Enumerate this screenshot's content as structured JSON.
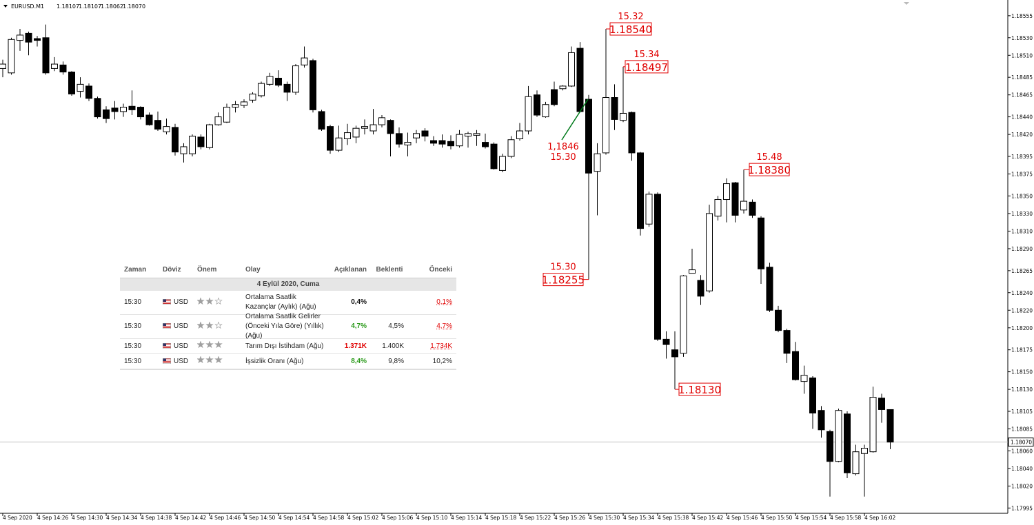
{
  "header": {
    "symbol": "EURUSD.M1",
    "ohlc": [
      "1.18107",
      "1.18107",
      "1.18062",
      "1.18070"
    ]
  },
  "chart_data": {
    "type": "candlestick",
    "categories": [
      "4 Sep 2020",
      null,
      null,
      null,
      "4 Sep 14:26",
      null,
      null,
      null,
      "4 Sep 14:30",
      null,
      null,
      null,
      "4 Sep 14:34",
      null,
      null,
      null,
      "4 Sep 14:38",
      null,
      null,
      null,
      "4 Sep 14:42",
      null,
      null,
      null,
      "4 Sep 14:46",
      null,
      null,
      null,
      "4 Sep 14:50",
      null,
      null,
      null,
      "4 Sep 14:54",
      null,
      null,
      null,
      "4 Sep 14:58",
      null,
      null,
      null,
      "4 Sep 15:02",
      null,
      null,
      null,
      "4 Sep 15:06",
      null,
      null,
      null,
      "4 Sep 15:10",
      null,
      null,
      null,
      "4 Sep 15:14",
      null,
      null,
      null,
      "4 Sep 15:18",
      null,
      null,
      null,
      "4 Sep 15:22",
      null,
      null,
      null,
      "4 Sep 15:26",
      null,
      null,
      null,
      "4 Sep 15:30",
      null,
      null,
      null,
      "4 Sep 15:34",
      null,
      null,
      null,
      "4 Sep 15:38",
      null,
      null,
      null,
      "4 Sep 15:42",
      null,
      null,
      null,
      "4 Sep 15:46",
      null,
      null,
      null,
      "4 Sep 15:50",
      null,
      null,
      null,
      "4 Sep 15:54",
      null,
      null,
      null,
      "4 Sep 15:58",
      null,
      null,
      null,
      "4 Sep 16:02",
      null,
      null,
      null
    ],
    "open": [
      1.18495,
      1.1849,
      1.18527,
      1.18535,
      1.18529,
      1.1853,
      1.18495,
      1.18499,
      1.18491,
      1.18469,
      1.18475,
      1.18461,
      1.18448,
      1.1845,
      1.18446,
      1.18452,
      1.18451,
      1.18442,
      1.18436,
      1.18423,
      1.18428,
      1.18398,
      1.18398,
      1.18417,
      1.18405,
      1.18431,
      1.18434,
      1.18451,
      1.18453,
      1.18459,
      1.18464,
      1.18477,
      1.18484,
      1.18477,
      1.18468,
      1.18499,
      1.18504,
      1.18446,
      1.18429,
      1.18402,
      1.18415,
      1.18417,
      1.18427,
      1.18424,
      1.18431,
      1.18436,
      1.18421,
      1.18408,
      1.18416,
      1.18424,
      1.18413,
      1.18413,
      1.18412,
      1.18407,
      1.18418,
      1.18419,
      1.18411,
      1.18409,
      1.18379,
      1.18395,
      1.18415,
      1.18424,
      1.18465,
      1.1844,
      1.18471,
      1.18472,
      1.18475,
      1.18518,
      1.1846,
      1.18378,
      1.18399,
      1.18462,
      1.18436,
      1.18445,
      1.18399,
      1.18318,
      1.18352,
      1.18187,
      1.18175,
      1.18171,
      1.18262,
      1.18254,
      1.18242,
      1.18327,
      1.18346,
      1.18365,
      1.18334,
      1.18343,
      1.18325,
      1.18269,
      1.1822,
      1.18197,
      1.18173,
      1.18139,
      1.18143,
      1.18106,
      1.18082,
      1.18048,
      1.18102,
      1.18034,
      1.18057,
      1.18059,
      1.1812,
      1.18107
    ],
    "high": [
      1.18505,
      1.1853,
      1.1854,
      1.18537,
      1.18532,
      1.18545,
      1.18508,
      1.18503,
      1.18492,
      1.18485,
      1.18478,
      1.18463,
      1.18452,
      1.18458,
      1.18455,
      1.1847,
      1.18452,
      1.18445,
      1.18446,
      1.18438,
      1.18432,
      1.1841,
      1.1842,
      1.1842,
      1.18432,
      1.18445,
      1.18455,
      1.18458,
      1.1846,
      1.18468,
      1.1848,
      1.1849,
      1.18493,
      1.1848,
      1.185,
      1.1852,
      1.18506,
      1.18448,
      1.18431,
      1.1843,
      1.18432,
      1.1843,
      1.18437,
      1.18449,
      1.18442,
      1.18437,
      1.18428,
      1.18422,
      1.18425,
      1.18427,
      1.18418,
      1.1842,
      1.18419,
      1.18425,
      1.18423,
      1.18425,
      1.18421,
      1.18411,
      1.18398,
      1.18418,
      1.18433,
      1.18475,
      1.1847,
      1.18457,
      1.1848,
      1.18476,
      1.1852,
      1.18525,
      1.18465,
      1.1841,
      1.1854,
      1.18477,
      1.18497,
      1.18446,
      1.184,
      1.18355,
      1.18354,
      1.18196,
      1.18196,
      1.1826,
      1.1829,
      1.1826,
      1.1834,
      1.1835,
      1.1837,
      1.18366,
      1.1838,
      1.18346,
      1.18327,
      1.18274,
      1.18225,
      1.18199,
      1.18184,
      1.18157,
      1.18145,
      1.18111,
      1.18084,
      1.18108,
      1.18105,
      1.18067,
      1.18067,
      1.18133,
      1.18125,
      1.18107
    ],
    "low": [
      1.18485,
      1.18488,
      1.18515,
      1.1851,
      1.1852,
      1.18488,
      1.18492,
      1.18488,
      1.18464,
      1.18462,
      1.18458,
      1.18438,
      1.18433,
      1.18437,
      1.1844,
      1.18442,
      1.18437,
      1.1843,
      1.18424,
      1.1842,
      1.18396,
      1.18388,
      1.18395,
      1.18403,
      1.18403,
      1.1843,
      1.18433,
      1.18445,
      1.1845,
      1.18456,
      1.18462,
      1.18475,
      1.18474,
      1.18458,
      1.18465,
      1.18496,
      1.18445,
      1.18424,
      1.18398,
      1.184,
      1.18408,
      1.1841,
      1.1842,
      1.1842,
      1.18428,
      1.18395,
      1.18405,
      1.18395,
      1.1841,
      1.18412,
      1.18407,
      1.18405,
      1.18403,
      1.18405,
      1.18405,
      1.18407,
      1.18404,
      1.1838,
      1.18377,
      1.18393,
      1.18413,
      1.1842,
      1.1844,
      1.18439,
      1.18452,
      1.1847,
      1.18474,
      1.18445,
      1.18255,
      1.18328,
      1.18397,
      1.18425,
      1.18434,
      1.1839,
      1.18305,
      1.18315,
      1.18185,
      1.18165,
      1.1813,
      1.18167,
      1.18262,
      1.18226,
      1.1824,
      1.18322,
      1.1832,
      1.1832,
      1.1833,
      1.18325,
      1.1825,
      1.18218,
      1.18195,
      1.1816,
      1.1814,
      1.18125,
      1.18085,
      1.18075,
      1.18008,
      1.18047,
      1.18029,
      1.18032,
      1.18008,
      1.18058,
      1.18092,
      1.18062
    ],
    "close": [
      1.185,
      1.18528,
      1.18533,
      1.18525,
      1.18527,
      1.1849,
      1.185,
      1.18491,
      1.18466,
      1.18477,
      1.18461,
      1.1844,
      1.18438,
      1.18446,
      1.18451,
      1.18448,
      1.1844,
      1.18431,
      1.18426,
      1.18429,
      1.184,
      1.18406,
      1.18418,
      1.18406,
      1.18431,
      1.1844,
      1.18451,
      1.18454,
      1.18457,
      1.18466,
      1.18478,
      1.18486,
      1.18476,
      1.18468,
      1.18498,
      1.18507,
      1.18448,
      1.18426,
      1.18402,
      1.18416,
      1.18422,
      1.18427,
      1.18429,
      1.18431,
      1.18439,
      1.18421,
      1.18409,
      1.18411,
      1.18421,
      1.18418,
      1.1841,
      1.18409,
      1.18407,
      1.1842,
      1.18421,
      1.18421,
      1.18406,
      1.18381,
      1.18395,
      1.18414,
      1.18424,
      1.18463,
      1.18442,
      1.18454,
      1.18454,
      1.18475,
      1.18513,
      1.18446,
      1.18376,
      1.18398,
      1.18462,
      1.18437,
      1.18444,
      1.18399,
      1.18313,
      1.18352,
      1.18187,
      1.18181,
      1.18167,
      1.18259,
      1.18266,
      1.18236,
      1.1833,
      1.18346,
      1.18364,
      1.18328,
      1.18344,
      1.18328,
      1.18267,
      1.1822,
      1.18197,
      1.18171,
      1.18141,
      1.18146,
      1.18103,
      1.18084,
      1.18048,
      1.18106,
      1.18035,
      1.18059,
      1.18063,
      1.18121,
      1.18107,
      1.1807
    ],
    "up_color": "#ffffff",
    "down_color": "#000000",
    "ylim": [
      1.17989,
      1.18569
    ],
    "yticks": [
      1.18555,
      {
        "value": 1.1853,
        "label": "1.18530"
      },
      {
        "value": 1.1851,
        "label": "1.18510"
      },
      1.18485,
      1.18465,
      {
        "value": 1.1844,
        "label": "1.18440"
      },
      {
        "value": 1.1842,
        "label": "1.18420"
      },
      1.18395,
      1.18375,
      {
        "value": 1.1835,
        "label": "1.18350"
      },
      {
        "value": 1.1833,
        "label": "1.18330"
      },
      {
        "value": 1.1831,
        "label": "1.18310"
      },
      {
        "value": 1.1829,
        "label": "1.18290"
      },
      1.18265,
      {
        "value": 1.1824,
        "label": "1.18240"
      },
      {
        "value": 1.1822,
        "label": "1.18220"
      },
      {
        "value": 1.182,
        "label": "1.18200"
      },
      1.18175,
      {
        "value": 1.1815,
        "label": "1.18150"
      },
      {
        "value": 1.1813,
        "label": "1.18130"
      },
      1.18105,
      1.18085,
      {
        "value": 1.1806,
        "label": "1.18060"
      },
      {
        "value": 1.1804,
        "label": "1.18040"
      },
      {
        "value": 1.1802,
        "label": "1.18020"
      },
      1.17995
    ],
    "last_price": {
      "value": 1.1807,
      "label": "1.18070"
    },
    "annotation_color": "#e00000",
    "annotations": [
      {
        "time": "15.32",
        "price": {
          "value": 1.1854,
          "label": "1.18540"
        }
      },
      {
        "time": "15.34",
        "price": {
          "value": 1.18497,
          "label": "1.18497"
        }
      },
      {
        "time": "15.30",
        "price": {
          "value": 1.18255,
          "label": "1.18255"
        }
      },
      {
        "price": {
          "value": 1.1813,
          "label": "1.18130"
        }
      },
      {
        "time": "15.48",
        "price": {
          "value": 1.1838,
          "label": "1.18380"
        }
      }
    ],
    "note": {
      "price": {
        "value": 1.1846,
        "label": "1,1846"
      },
      "time": "15.30",
      "color": "#007a1a"
    }
  },
  "calendar": {
    "headers": [
      "Zaman",
      "Döviz",
      "Önem",
      "Olay",
      "Açıklanan",
      "Beklenti",
      "Önceki"
    ],
    "date": "4 Eylül 2020, Cuma",
    "rows": [
      {
        "time": "15:30",
        "currency": "USD",
        "importance": 2,
        "event": "Ortalama Saatlik Kazançlar (Aylık) (Ağu)",
        "actual": "0,4%",
        "actual_color": "#111111",
        "forecast": null,
        "previous": "0,1%",
        "previous_color": "#e00000"
      },
      {
        "time": "15:30",
        "currency": "USD",
        "importance": 2,
        "event": "Ortalama Saatlik Gelirler (Önceki Yıla Göre) (Yıllık) (Ağu)",
        "actual": "4,7%",
        "actual_color": "#2a9a1a",
        "forecast": "4,5%",
        "previous": "4,7%",
        "previous_color": "#e00000"
      },
      {
        "time": "15:30",
        "currency": "USD",
        "importance": 3,
        "event": "Tarım Dışı İstihdam (Ağu)",
        "actual": "1.371K",
        "actual_color": "#e00000",
        "forecast": "1.400K",
        "previous": "1.734K",
        "previous_color": "#e00000"
      },
      {
        "time": "15:30",
        "currency": "USD",
        "importance": 3,
        "event": "İşsizlik Oranı (Ağu)",
        "actual": "8,4%",
        "actual_color": "#2a9a1a",
        "forecast": "9,8%",
        "previous": "10,2%",
        "previous_color": "#222222"
      }
    ]
  }
}
